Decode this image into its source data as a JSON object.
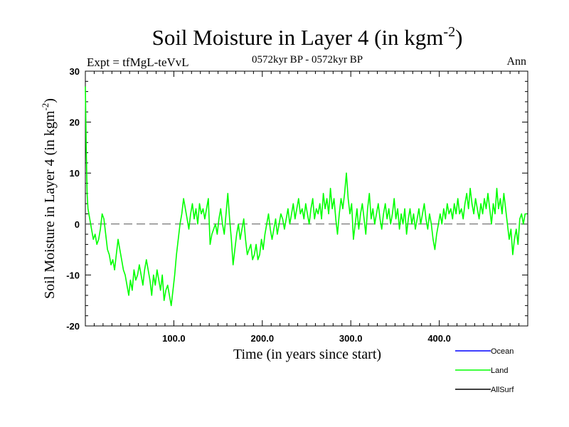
{
  "chart_data": {
    "type": "line",
    "title": "Soil Moisture in Layer 4 (in kgm",
    "title_sup": "-2",
    "title_tail": ")",
    "subtitle_left": "Expt = tfMgL-teVvL",
    "subtitle_center": "0572kyr BP - 0572kyr BP",
    "subtitle_right": "Ann",
    "xlabel": "Time (in years since start)",
    "ylabel": "Soil Moisture in Layer 4 (in kgm",
    "ylabel_sup": "-2",
    "ylabel_tail": ")",
    "xlim": [
      0,
      500
    ],
    "ylim": [
      -20,
      30
    ],
    "x_ticks": [
      {
        "value": 100,
        "label": "100.0"
      },
      {
        "value": 200,
        "label": "200.0"
      },
      {
        "value": 300,
        "label": "300.0"
      },
      {
        "value": 400,
        "label": "400.0"
      }
    ],
    "y_ticks": [
      {
        "value": 30,
        "label": "30"
      },
      {
        "value": 20,
        "label": "20"
      },
      {
        "value": 10,
        "label": "10"
      },
      {
        "value": 0,
        "label": "0"
      },
      {
        "value": -10,
        "label": "-10"
      },
      {
        "value": -20,
        "label": "-20"
      }
    ],
    "zero_line": {
      "value": 0,
      "style": "dashed"
    },
    "legend": {
      "placement": "bottom-right",
      "entries": [
        {
          "name": "Ocean",
          "color": "#0000ff"
        },
        {
          "name": "Land",
          "color": "#00ff00"
        },
        {
          "name": "AllSurf",
          "color": "#000000"
        }
      ]
    },
    "series": [
      {
        "name": "Land",
        "color": "#00ff00",
        "points": [
          [
            0,
            27
          ],
          [
            1,
            15
          ],
          [
            2,
            6
          ],
          [
            3,
            3
          ],
          [
            5,
            1
          ],
          [
            7,
            -1
          ],
          [
            9,
            -3
          ],
          [
            11,
            -2
          ],
          [
            13,
            -4
          ],
          [
            15,
            -3
          ],
          [
            17,
            -1
          ],
          [
            19,
            2
          ],
          [
            21,
            1
          ],
          [
            23,
            -2
          ],
          [
            25,
            -5
          ],
          [
            27,
            -6
          ],
          [
            29,
            -8
          ],
          [
            31,
            -7
          ],
          [
            33,
            -9
          ],
          [
            35,
            -6
          ],
          [
            37,
            -3
          ],
          [
            39,
            -5
          ],
          [
            41,
            -7
          ],
          [
            43,
            -9
          ],
          [
            45,
            -10
          ],
          [
            47,
            -12
          ],
          [
            49,
            -14
          ],
          [
            51,
            -11
          ],
          [
            53,
            -13
          ],
          [
            55,
            -9
          ],
          [
            57,
            -11
          ],
          [
            59,
            -10
          ],
          [
            61,
            -8
          ],
          [
            63,
            -10
          ],
          [
            65,
            -12
          ],
          [
            67,
            -9
          ],
          [
            69,
            -7
          ],
          [
            71,
            -9
          ],
          [
            73,
            -11
          ],
          [
            75,
            -14
          ],
          [
            77,
            -10
          ],
          [
            79,
            -12
          ],
          [
            81,
            -9
          ],
          [
            83,
            -11
          ],
          [
            85,
            -13
          ],
          [
            87,
            -10
          ],
          [
            89,
            -15
          ],
          [
            91,
            -13
          ],
          [
            93,
            -12
          ],
          [
            95,
            -14
          ],
          [
            97,
            -16
          ],
          [
            99,
            -13
          ],
          [
            101,
            -10
          ],
          [
            103,
            -6
          ],
          [
            105,
            -3
          ],
          [
            107,
            0
          ],
          [
            109,
            2
          ],
          [
            111,
            5
          ],
          [
            113,
            3
          ],
          [
            115,
            1
          ],
          [
            117,
            -1
          ],
          [
            119,
            2
          ],
          [
            121,
            4
          ],
          [
            123,
            1
          ],
          [
            125,
            3
          ],
          [
            127,
            0
          ],
          [
            129,
            4
          ],
          [
            131,
            2
          ],
          [
            133,
            3
          ],
          [
            135,
            1
          ],
          [
            137,
            3
          ],
          [
            139,
            5
          ],
          [
            141,
            -4
          ],
          [
            143,
            -2
          ],
          [
            145,
            -1
          ],
          [
            147,
            0
          ],
          [
            149,
            -2
          ],
          [
            151,
            1
          ],
          [
            153,
            3
          ],
          [
            155,
            0
          ],
          [
            157,
            -2
          ],
          [
            159,
            2
          ],
          [
            161,
            6
          ],
          [
            163,
            1
          ],
          [
            165,
            -3
          ],
          [
            167,
            -8
          ],
          [
            169,
            -5
          ],
          [
            171,
            -2
          ],
          [
            173,
            0
          ],
          [
            175,
            -3
          ],
          [
            177,
            -1
          ],
          [
            179,
            1
          ],
          [
            181,
            -3
          ],
          [
            183,
            -6
          ],
          [
            185,
            -5
          ],
          [
            187,
            -4
          ],
          [
            189,
            -7
          ],
          [
            191,
            -6
          ],
          [
            193,
            -4
          ],
          [
            195,
            -7
          ],
          [
            197,
            -6
          ],
          [
            199,
            -3
          ],
          [
            201,
            -5
          ],
          [
            203,
            -2
          ],
          [
            205,
            0
          ],
          [
            207,
            2
          ],
          [
            209,
            -1
          ],
          [
            211,
            -3
          ],
          [
            213,
            -1
          ],
          [
            215,
            1
          ],
          [
            217,
            -2
          ],
          [
            219,
            0
          ],
          [
            221,
            2
          ],
          [
            223,
            1
          ],
          [
            225,
            -1
          ],
          [
            227,
            1
          ],
          [
            229,
            3
          ],
          [
            231,
            0
          ],
          [
            233,
            2
          ],
          [
            235,
            4
          ],
          [
            237,
            1
          ],
          [
            239,
            3
          ],
          [
            241,
            5
          ],
          [
            243,
            2
          ],
          [
            245,
            3
          ],
          [
            247,
            1
          ],
          [
            249,
            4
          ],
          [
            251,
            2
          ],
          [
            253,
            0
          ],
          [
            255,
            3
          ],
          [
            257,
            5
          ],
          [
            259,
            1
          ],
          [
            261,
            3
          ],
          [
            263,
            2
          ],
          [
            265,
            4
          ],
          [
            267,
            1
          ],
          [
            269,
            6
          ],
          [
            271,
            3
          ],
          [
            273,
            5
          ],
          [
            275,
            2
          ],
          [
            277,
            7
          ],
          [
            279,
            3
          ],
          [
            281,
            5
          ],
          [
            283,
            1
          ],
          [
            285,
            -2
          ],
          [
            287,
            2
          ],
          [
            289,
            5
          ],
          [
            291,
            3
          ],
          [
            293,
            6
          ],
          [
            295,
            10
          ],
          [
            297,
            5
          ],
          [
            299,
            2
          ],
          [
            301,
            4
          ],
          [
            303,
            -3
          ],
          [
            305,
            0
          ],
          [
            307,
            3
          ],
          [
            309,
            -1
          ],
          [
            311,
            2
          ],
          [
            313,
            4
          ],
          [
            315,
            1
          ],
          [
            317,
            -2
          ],
          [
            319,
            3
          ],
          [
            321,
            6
          ],
          [
            323,
            1
          ],
          [
            325,
            3
          ],
          [
            327,
            0
          ],
          [
            329,
            2
          ],
          [
            331,
            4
          ],
          [
            333,
            1
          ],
          [
            335,
            -1
          ],
          [
            337,
            2
          ],
          [
            339,
            4
          ],
          [
            341,
            1
          ],
          [
            343,
            3
          ],
          [
            345,
            0
          ],
          [
            347,
            2
          ],
          [
            349,
            5
          ],
          [
            351,
            1
          ],
          [
            353,
            3
          ],
          [
            355,
            -1
          ],
          [
            357,
            2
          ],
          [
            359,
            0
          ],
          [
            361,
            3
          ],
          [
            363,
            -2
          ],
          [
            365,
            1
          ],
          [
            367,
            3
          ],
          [
            369,
            0
          ],
          [
            371,
            2
          ],
          [
            373,
            -1
          ],
          [
            375,
            1
          ],
          [
            377,
            3
          ],
          [
            379,
            0
          ],
          [
            381,
            2
          ],
          [
            383,
            4
          ],
          [
            385,
            1
          ],
          [
            387,
            -1
          ],
          [
            389,
            2
          ],
          [
            391,
            0
          ],
          [
            393,
            -3
          ],
          [
            395,
            -5
          ],
          [
            397,
            -2
          ],
          [
            399,
            0
          ],
          [
            401,
            2
          ],
          [
            403,
            0
          ],
          [
            405,
            3
          ],
          [
            407,
            1
          ],
          [
            409,
            4
          ],
          [
            411,
            2
          ],
          [
            413,
            3
          ],
          [
            415,
            1
          ],
          [
            417,
            4
          ],
          [
            419,
            2
          ],
          [
            421,
            5
          ],
          [
            423,
            2
          ],
          [
            425,
            3
          ],
          [
            427,
            1
          ],
          [
            429,
            4
          ],
          [
            431,
            6
          ],
          [
            433,
            3
          ],
          [
            435,
            7
          ],
          [
            437,
            4
          ],
          [
            439,
            2
          ],
          [
            441,
            5
          ],
          [
            443,
            3
          ],
          [
            445,
            1
          ],
          [
            447,
            4
          ],
          [
            449,
            2
          ],
          [
            451,
            5
          ],
          [
            453,
            3
          ],
          [
            455,
            6
          ],
          [
            457,
            3
          ],
          [
            459,
            0
          ],
          [
            461,
            4
          ],
          [
            463,
            2
          ],
          [
            465,
            7
          ],
          [
            467,
            3
          ],
          [
            469,
            5
          ],
          [
            471,
            2
          ],
          [
            473,
            6
          ],
          [
            475,
            3
          ],
          [
            477,
            0
          ],
          [
            479,
            -3
          ],
          [
            481,
            -1
          ],
          [
            483,
            -6
          ],
          [
            485,
            -3
          ],
          [
            487,
            -1
          ],
          [
            489,
            -4
          ],
          [
            491,
            1
          ],
          [
            493,
            2
          ],
          [
            495,
            0
          ],
          [
            497,
            2
          ],
          [
            499,
            2
          ]
        ]
      }
    ]
  }
}
